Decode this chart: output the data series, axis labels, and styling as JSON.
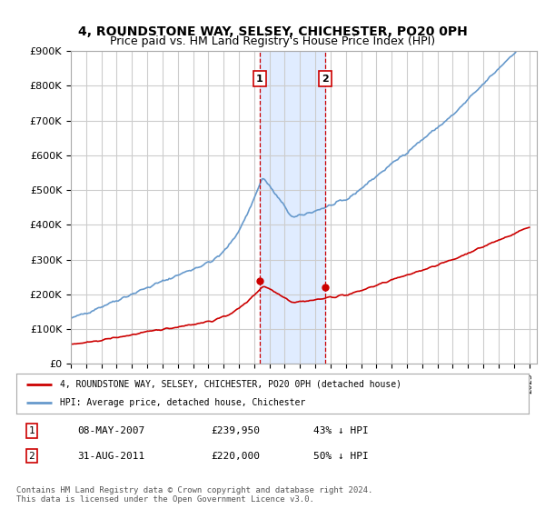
{
  "title": "4, ROUNDSTONE WAY, SELSEY, CHICHESTER, PO20 0PH",
  "subtitle": "Price paid vs. HM Land Registry's House Price Index (HPI)",
  "ylim": [
    0,
    900000
  ],
  "yticks": [
    0,
    100000,
    200000,
    300000,
    400000,
    500000,
    600000,
    700000,
    800000,
    900000
  ],
  "ytick_labels": [
    "£0",
    "£100K",
    "£200K",
    "£300K",
    "£400K",
    "£500K",
    "£600K",
    "£700K",
    "£800K",
    "£900K"
  ],
  "background_color": "#ffffff",
  "grid_color": "#cccccc",
  "hpi_color": "#6699cc",
  "price_color": "#cc0000",
  "transaction1_date": 2007.35,
  "transaction1_price": 239950,
  "transaction1_label": "1",
  "transaction2_date": 2011.65,
  "transaction2_price": 220000,
  "transaction2_label": "2",
  "legend_hpi": "HPI: Average price, detached house, Chichester",
  "legend_price": "4, ROUNDSTONE WAY, SELSEY, CHICHESTER, PO20 0PH (detached house)",
  "table_row1": [
    "1",
    "08-MAY-2007",
    "£239,950",
    "43% ↓ HPI"
  ],
  "table_row2": [
    "2",
    "31-AUG-2011",
    "£220,000",
    "50% ↓ HPI"
  ],
  "footnote": "Contains HM Land Registry data © Crown copyright and database right 2024.\nThis data is licensed under the Open Government Licence v3.0.",
  "title_fontsize": 10,
  "subtitle_fontsize": 9,
  "tick_fontsize": 8
}
